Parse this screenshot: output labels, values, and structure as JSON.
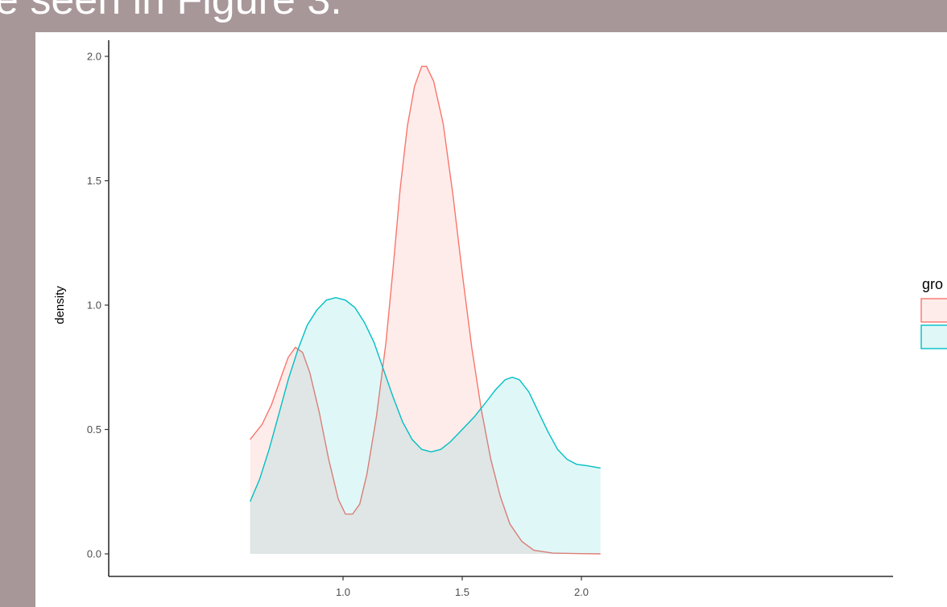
{
  "slide": {
    "heading": "e seen in Figure 3."
  },
  "chart_data": {
    "type": "area",
    "chart_style": "density",
    "title": "",
    "xlabel": "",
    "ylabel": "density",
    "xlim": [
      0.55,
      2.15
    ],
    "ylim": [
      0,
      2.05
    ],
    "x_ticks": [
      1.0,
      1.5,
      2.0
    ],
    "x_tick_labels": [
      "1.0",
      "1.5",
      "2.0"
    ],
    "y_ticks": [
      0.0,
      0.5,
      1.0,
      1.5,
      2.0
    ],
    "y_tick_labels": [
      "0.0",
      "0.5",
      "1.0",
      "1.5",
      "2.0"
    ],
    "grid": false,
    "legend": {
      "title": "gro",
      "placement": "right"
    },
    "series": [
      {
        "line_color": "#f8766d",
        "fill_color": "#f8766d",
        "fill_opacity": 0.14,
        "points": [
          [
            0.61,
            0.46
          ],
          [
            0.66,
            0.52
          ],
          [
            0.7,
            0.6
          ],
          [
            0.74,
            0.71
          ],
          [
            0.77,
            0.79
          ],
          [
            0.8,
            0.83
          ],
          [
            0.83,
            0.81
          ],
          [
            0.86,
            0.73
          ],
          [
            0.9,
            0.57
          ],
          [
            0.94,
            0.38
          ],
          [
            0.98,
            0.22
          ],
          [
            1.01,
            0.16
          ],
          [
            1.04,
            0.16
          ],
          [
            1.07,
            0.2
          ],
          [
            1.1,
            0.32
          ],
          [
            1.14,
            0.55
          ],
          [
            1.18,
            0.85
          ],
          [
            1.21,
            1.15
          ],
          [
            1.24,
            1.47
          ],
          [
            1.27,
            1.72
          ],
          [
            1.3,
            1.88
          ],
          [
            1.33,
            1.96
          ],
          [
            1.35,
            1.96
          ],
          [
            1.38,
            1.9
          ],
          [
            1.42,
            1.73
          ],
          [
            1.46,
            1.45
          ],
          [
            1.5,
            1.13
          ],
          [
            1.54,
            0.83
          ],
          [
            1.58,
            0.58
          ],
          [
            1.62,
            0.38
          ],
          [
            1.66,
            0.23
          ],
          [
            1.7,
            0.12
          ],
          [
            1.75,
            0.05
          ],
          [
            1.8,
            0.015
          ],
          [
            1.88,
            0.003
          ],
          [
            2.0,
            0.001
          ],
          [
            2.08,
            0.0
          ]
        ]
      },
      {
        "line_color": "#00bfc4",
        "fill_color": "#00bfc4",
        "fill_opacity": 0.12,
        "points": [
          [
            0.61,
            0.21
          ],
          [
            0.65,
            0.3
          ],
          [
            0.69,
            0.42
          ],
          [
            0.73,
            0.56
          ],
          [
            0.77,
            0.7
          ],
          [
            0.81,
            0.82
          ],
          [
            0.85,
            0.92
          ],
          [
            0.89,
            0.98
          ],
          [
            0.93,
            1.02
          ],
          [
            0.97,
            1.03
          ],
          [
            1.01,
            1.02
          ],
          [
            1.05,
            0.99
          ],
          [
            1.09,
            0.93
          ],
          [
            1.13,
            0.85
          ],
          [
            1.17,
            0.74
          ],
          [
            1.21,
            0.63
          ],
          [
            1.25,
            0.53
          ],
          [
            1.29,
            0.46
          ],
          [
            1.33,
            0.42
          ],
          [
            1.37,
            0.41
          ],
          [
            1.41,
            0.42
          ],
          [
            1.45,
            0.45
          ],
          [
            1.5,
            0.5
          ],
          [
            1.55,
            0.55
          ],
          [
            1.6,
            0.61
          ],
          [
            1.64,
            0.66
          ],
          [
            1.68,
            0.7
          ],
          [
            1.71,
            0.71
          ],
          [
            1.74,
            0.7
          ],
          [
            1.78,
            0.65
          ],
          [
            1.82,
            0.57
          ],
          [
            1.86,
            0.49
          ],
          [
            1.9,
            0.42
          ],
          [
            1.94,
            0.38
          ],
          [
            1.98,
            0.36
          ],
          [
            2.02,
            0.355
          ],
          [
            2.08,
            0.345
          ]
        ]
      }
    ]
  }
}
